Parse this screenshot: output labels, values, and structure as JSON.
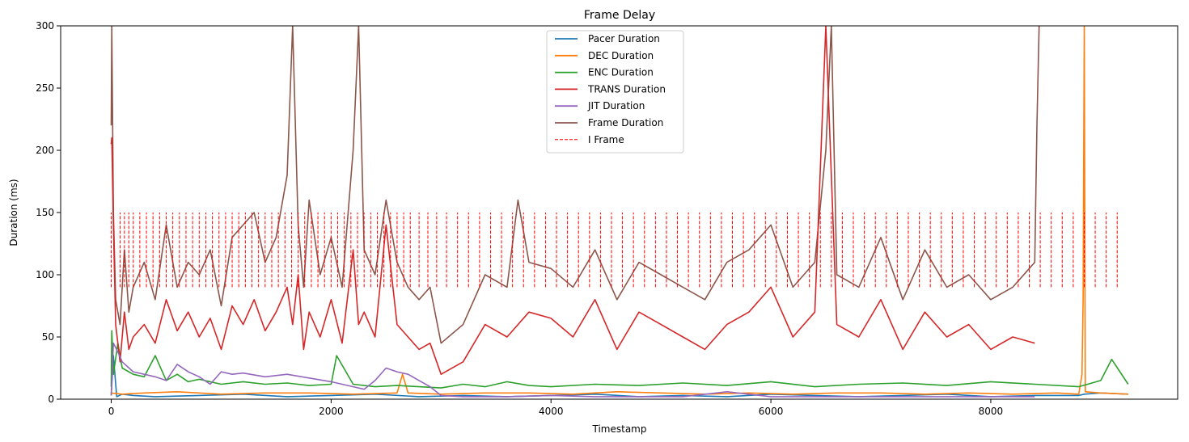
{
  "chart_data": {
    "type": "line",
    "title": "Frame Delay",
    "xlabel": "Timestamp",
    "ylabel": "Duration (ms)",
    "xlim": [
      -460,
      9700
    ],
    "ylim": [
      0,
      300
    ],
    "xticks": [
      0,
      2000,
      4000,
      6000,
      8000
    ],
    "yticks": [
      0,
      50,
      100,
      150,
      200,
      250,
      300
    ],
    "legend_position": "top-center",
    "grid": false,
    "series": [
      {
        "name": "Pacer Duration",
        "color": "#1f77b4",
        "x": [
          0,
          20,
          50,
          100,
          200,
          400,
          800,
          1200,
          1600,
          2000,
          2400,
          2800,
          3200,
          3600,
          4000,
          4400,
          4800,
          5200,
          5600,
          6000,
          6400,
          6800,
          7200,
          7600,
          8000,
          8400,
          8800,
          8850,
          9000,
          9250
        ],
        "values": [
          3,
          35,
          2,
          4,
          3,
          2,
          3,
          4,
          2,
          3,
          4,
          2,
          3,
          2,
          3,
          4,
          2,
          3,
          2,
          4,
          3,
          2,
          3,
          4,
          2,
          3,
          3,
          4,
          5,
          4
        ]
      },
      {
        "name": "DEC Duration",
        "color": "#ff7f0e",
        "x": [
          0,
          100,
          300,
          600,
          1000,
          1400,
          1800,
          2200,
          2600,
          2650,
          2700,
          3000,
          3400,
          3800,
          4200,
          4600,
          5000,
          5400,
          5800,
          6200,
          6600,
          7000,
          7400,
          7800,
          8200,
          8600,
          8800,
          8830,
          8840,
          8850,
          8860,
          9000,
          9250
        ],
        "values": [
          5,
          4,
          5,
          6,
          4,
          5,
          5,
          4,
          5,
          20,
          5,
          4,
          5,
          5,
          4,
          6,
          5,
          4,
          5,
          4,
          5,
          5,
          4,
          5,
          4,
          5,
          4,
          20,
          80,
          300,
          6,
          5,
          4
        ]
      },
      {
        "name": "ENC Duration",
        "color": "#2ca02c",
        "x": [
          0,
          5,
          20,
          60,
          100,
          200,
          300,
          400,
          500,
          600,
          700,
          800,
          1000,
          1200,
          1400,
          1600,
          1800,
          2000,
          2050,
          2200,
          2400,
          2600,
          2800,
          3000,
          3200,
          3400,
          3600,
          3800,
          4000,
          4400,
          4800,
          5200,
          5600,
          6000,
          6400,
          6800,
          7200,
          7600,
          8000,
          8400,
          8800,
          9000,
          9100,
          9250
        ],
        "values": [
          10,
          55,
          20,
          45,
          25,
          20,
          18,
          35,
          15,
          20,
          14,
          16,
          12,
          14,
          12,
          13,
          11,
          12,
          35,
          12,
          10,
          11,
          10,
          9,
          12,
          10,
          14,
          11,
          10,
          12,
          11,
          13,
          11,
          14,
          10,
          12,
          13,
          11,
          14,
          12,
          10,
          15,
          32,
          12
        ]
      },
      {
        "name": "TRANS Duration",
        "color": "#d62728",
        "x": [
          0,
          5,
          20,
          40,
          80,
          120,
          160,
          200,
          300,
          400,
          500,
          600,
          700,
          800,
          900,
          1000,
          1100,
          1200,
          1300,
          1400,
          1500,
          1600,
          1650,
          1700,
          1750,
          1800,
          1900,
          2000,
          2100,
          2200,
          2250,
          2300,
          2400,
          2500,
          2600,
          2700,
          2800,
          2900,
          3000,
          3200,
          3400,
          3600,
          3800,
          4000,
          4200,
          4400,
          4600,
          4800,
          5000,
          5200,
          5400,
          5600,
          5800,
          6000,
          6200,
          6400,
          6500,
          6600,
          6800,
          7000,
          7200,
          7400,
          7600,
          7800,
          8000,
          8200,
          8400
        ],
        "values": [
          205,
          210,
          140,
          60,
          30,
          70,
          40,
          50,
          60,
          45,
          80,
          55,
          70,
          50,
          65,
          40,
          75,
          60,
          80,
          55,
          70,
          90,
          60,
          100,
          40,
          70,
          50,
          80,
          45,
          120,
          60,
          70,
          50,
          140,
          60,
          50,
          40,
          45,
          20,
          30,
          60,
          50,
          70,
          65,
          50,
          80,
          40,
          70,
          60,
          50,
          40,
          60,
          70,
          90,
          50,
          70,
          300,
          60,
          50,
          80,
          40,
          70,
          50,
          60,
          40,
          50,
          45
        ]
      },
      {
        "name": "JIT Duration",
        "color": "#9467bd",
        "x": [
          0,
          20,
          60,
          100,
          200,
          300,
          400,
          500,
          600,
          700,
          800,
          900,
          1000,
          1100,
          1200,
          1400,
          1600,
          1800,
          2000,
          2100,
          2200,
          2300,
          2400,
          2500,
          2600,
          2700,
          2800,
          2900,
          3000,
          3200,
          3600,
          4000,
          4400,
          4800,
          5200,
          5600,
          6000,
          6400,
          6800,
          7200,
          7600,
          8000,
          8400
        ],
        "values": [
          3,
          45,
          38,
          30,
          22,
          20,
          18,
          15,
          28,
          22,
          18,
          12,
          22,
          20,
          21,
          18,
          20,
          17,
          14,
          12,
          10,
          8,
          15,
          25,
          22,
          20,
          15,
          10,
          3,
          2,
          2,
          3,
          2,
          2,
          2,
          6,
          2,
          2,
          2,
          2,
          2,
          2,
          2
        ]
      },
      {
        "name": "Frame Duration",
        "color": "#8c564b",
        "x": [
          0,
          5,
          20,
          40,
          80,
          120,
          160,
          200,
          300,
          400,
          500,
          600,
          700,
          800,
          900,
          1000,
          1100,
          1200,
          1300,
          1400,
          1500,
          1600,
          1650,
          1700,
          1750,
          1800,
          1900,
          2000,
          2100,
          2200,
          2250,
          2300,
          2400,
          2500,
          2600,
          2700,
          2800,
          2900,
          3000,
          3200,
          3400,
          3600,
          3700,
          3800,
          4000,
          4200,
          4400,
          4600,
          4800,
          5000,
          5200,
          5400,
          5600,
          5800,
          6000,
          6200,
          6400,
          6500,
          6550,
          6600,
          6800,
          7000,
          7200,
          7400,
          7600,
          7800,
          8000,
          8200,
          8400,
          8420,
          8440
        ],
        "values": [
          220,
          300,
          150,
          80,
          60,
          120,
          70,
          90,
          110,
          80,
          140,
          90,
          110,
          100,
          120,
          75,
          130,
          140,
          150,
          110,
          130,
          180,
          300,
          140,
          90,
          160,
          100,
          130,
          90,
          200,
          300,
          120,
          100,
          160,
          110,
          90,
          80,
          90,
          45,
          60,
          100,
          90,
          160,
          110,
          105,
          90,
          120,
          80,
          110,
          100,
          90,
          80,
          110,
          120,
          140,
          90,
          110,
          200,
          300,
          100,
          90,
          130,
          80,
          120,
          90,
          100,
          80,
          90,
          110,
          220,
          300
        ]
      },
      {
        "name": "I Frame",
        "color": "#ff0000",
        "style": "dashed",
        "y_range": [
          90,
          150
        ],
        "x": [
          0,
          80,
          120,
          160,
          200,
          260,
          320,
          380,
          440,
          500,
          560,
          620,
          680,
          740,
          800,
          860,
          920,
          980,
          1040,
          1100,
          1160,
          1220,
          1280,
          1340,
          1400,
          1460,
          1520,
          1580,
          1640,
          1700,
          1760,
          1820,
          1880,
          1940,
          2000,
          2060,
          2120,
          2180,
          2240,
          2300,
          2360,
          2420,
          2480,
          2540,
          2600,
          2660,
          2720,
          2800,
          2880,
          2960,
          3050,
          3150,
          3250,
          3350,
          3450,
          3550,
          3650,
          3750,
          3850,
          3950,
          4050,
          4150,
          4250,
          4350,
          4450,
          4550,
          4650,
          4750,
          4850,
          4950,
          5050,
          5150,
          5250,
          5350,
          5450,
          5550,
          5650,
          5750,
          5850,
          5950,
          6050,
          6150,
          6250,
          6350,
          6450,
          6550,
          6650,
          6750,
          6850,
          6950,
          7050,
          7150,
          7250,
          7350,
          7450,
          7550,
          7650,
          7750,
          7850,
          7950,
          8050,
          8150,
          8250,
          8350,
          8450,
          8550,
          8650,
          8750,
          8850,
          8950,
          9050,
          9150
        ]
      }
    ]
  }
}
